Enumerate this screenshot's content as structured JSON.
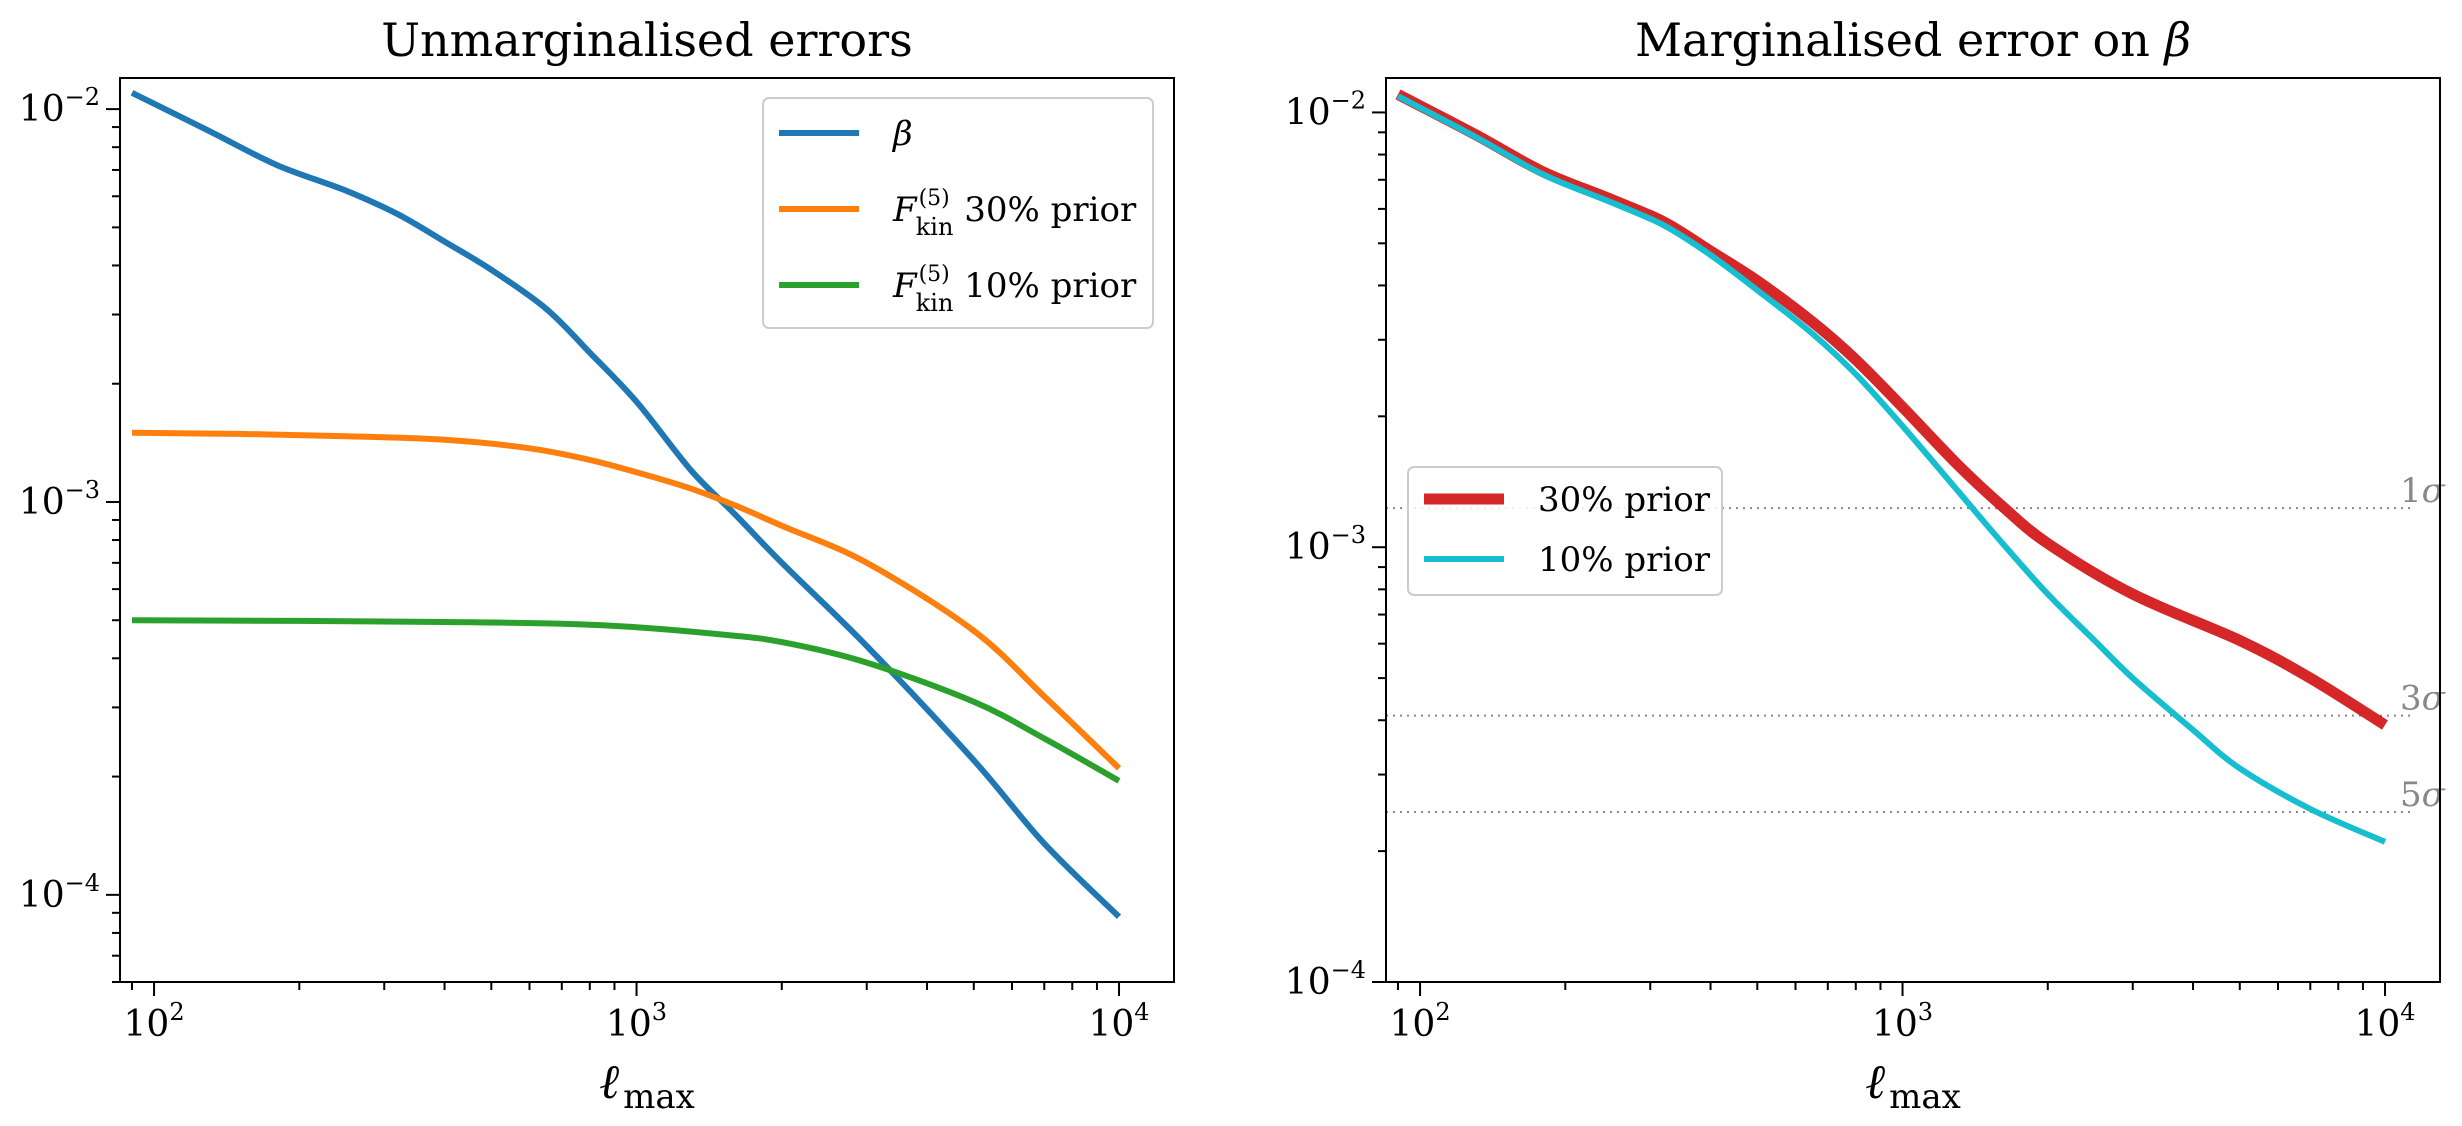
{
  "chart_data": [
    {
      "type": "line",
      "title": "Unmarginalised errors",
      "xlabel": "ℓ max",
      "ylabel": "",
      "xscale": "log",
      "yscale": "log",
      "xlim": [
        85,
        13000
      ],
      "ylim": [
        6e-05,
        0.012
      ],
      "xticks": [
        {
          "value": 100,
          "base": "10",
          "exp": "2"
        },
        {
          "value": 1000,
          "base": "10",
          "exp": "3"
        },
        {
          "value": 10000,
          "base": "10",
          "exp": "4"
        }
      ],
      "yticks": [
        {
          "value": 0.0001,
          "base": "10",
          "exp": "−4"
        },
        {
          "value": 0.001,
          "base": "10",
          "exp": "−3"
        },
        {
          "value": 0.01,
          "base": "10",
          "exp": "−2"
        }
      ],
      "grid": false,
      "legend_position": "top-right",
      "series": [
        {
          "name": "β",
          "label_main": "β",
          "label_sub": "",
          "label_sup": "",
          "label_suffix": "",
          "color": "#1f77b4",
          "width": 6,
          "x": [
            90,
            130,
            180,
            250,
            320,
            400,
            500,
            650,
            800,
            1000,
            1300,
            1600,
            2000,
            3000,
            5000,
            7000,
            10000
          ],
          "y": [
            0.011,
            0.0088,
            0.0072,
            0.0062,
            0.0054,
            0.0046,
            0.0039,
            0.0031,
            0.0024,
            0.0018,
            0.0012,
            0.00093,
            0.0007,
            0.00043,
            0.00022,
            0.000135,
            8.8e-05
          ]
        },
        {
          "name": "F_kin^(5) 30% prior",
          "label_main": "F",
          "label_sub": "kin",
          "label_sup": "(5)",
          "label_suffix": " 30% prior",
          "color": "#ff7f0e",
          "width": 6,
          "x": [
            90,
            150,
            250,
            400,
            600,
            800,
            1000,
            1300,
            1600,
            2000,
            3000,
            5000,
            7000,
            10000
          ],
          "y": [
            0.0015,
            0.00149,
            0.00147,
            0.00144,
            0.00137,
            0.00128,
            0.00119,
            0.00108,
            0.00098,
            0.00087,
            0.0007,
            0.00047,
            0.00032,
            0.00021
          ]
        },
        {
          "name": "F_kin^(5) 10% prior",
          "label_main": "F",
          "label_sub": "kin",
          "label_sup": "(5)",
          "label_suffix": " 10% prior",
          "color": "#2ca02c",
          "width": 6,
          "x": [
            90,
            200,
            400,
            700,
            1000,
            1500,
            2000,
            3000,
            5000,
            7000,
            10000
          ],
          "y": [
            0.0005,
            0.000498,
            0.000495,
            0.00049,
            0.00048,
            0.00046,
            0.00044,
            0.00039,
            0.00031,
            0.00025,
            0.000195
          ]
        }
      ]
    },
    {
      "type": "line",
      "title": "Marginalised error on β",
      "xlabel": "ℓ max",
      "ylabel": "",
      "xscale": "log",
      "yscale": "log",
      "xlim": [
        85,
        13000
      ],
      "ylim": [
        0.0001,
        0.012
      ],
      "xticks": [
        {
          "value": 100,
          "base": "10",
          "exp": "2"
        },
        {
          "value": 1000,
          "base": "10",
          "exp": "3"
        },
        {
          "value": 10000,
          "base": "10",
          "exp": "4"
        }
      ],
      "yticks": [
        {
          "value": 0.0001,
          "base": "10",
          "exp": "−4"
        },
        {
          "value": 0.001,
          "base": "10",
          "exp": "−3"
        },
        {
          "value": 0.01,
          "base": "10",
          "exp": "−2"
        }
      ],
      "grid": false,
      "legend_position": "center-left",
      "series": [
        {
          "name": "30% prior",
          "label_main": "30% prior",
          "label_sub": "",
          "label_sup": "",
          "label_suffix": "",
          "color": "#d62728",
          "width": 11,
          "x": [
            90,
            130,
            180,
            250,
            320,
            400,
            500,
            650,
            800,
            1000,
            1300,
            1600,
            2000,
            3000,
            5000,
            7000,
            10000
          ],
          "y": [
            0.011,
            0.0089,
            0.0073,
            0.0063,
            0.0056,
            0.0048,
            0.0041,
            0.0033,
            0.0027,
            0.0021,
            0.00155,
            0.00125,
            0.00102,
            0.00078,
            0.00061,
            0.0005,
            0.00039
          ]
        },
        {
          "name": "10% prior",
          "label_main": "10% prior",
          "label_sub": "",
          "label_sup": "",
          "label_suffix": "",
          "color": "#17becf",
          "width": 6,
          "x": [
            90,
            130,
            180,
            250,
            320,
            400,
            500,
            650,
            800,
            1000,
            1300,
            1600,
            2000,
            2500,
            3000,
            4000,
            5000,
            7000,
            10000
          ],
          "y": [
            0.0109,
            0.0088,
            0.0072,
            0.0062,
            0.0055,
            0.0047,
            0.0039,
            0.0031,
            0.0025,
            0.0019,
            0.00135,
            0.00103,
            0.00078,
            0.00061,
            0.0005,
            0.00038,
            0.00031,
            0.00025,
            0.00021
          ]
        }
      ],
      "reference_lines": [
        {
          "y": 0.00123,
          "label_num": "1",
          "label_sym": "σ",
          "color": "#888888"
        },
        {
          "y": 0.00041,
          "label_num": "3",
          "label_sym": "σ",
          "color": "#888888"
        },
        {
          "y": 0.000246,
          "label_num": "5",
          "label_sym": "σ",
          "color": "#888888"
        }
      ]
    }
  ]
}
